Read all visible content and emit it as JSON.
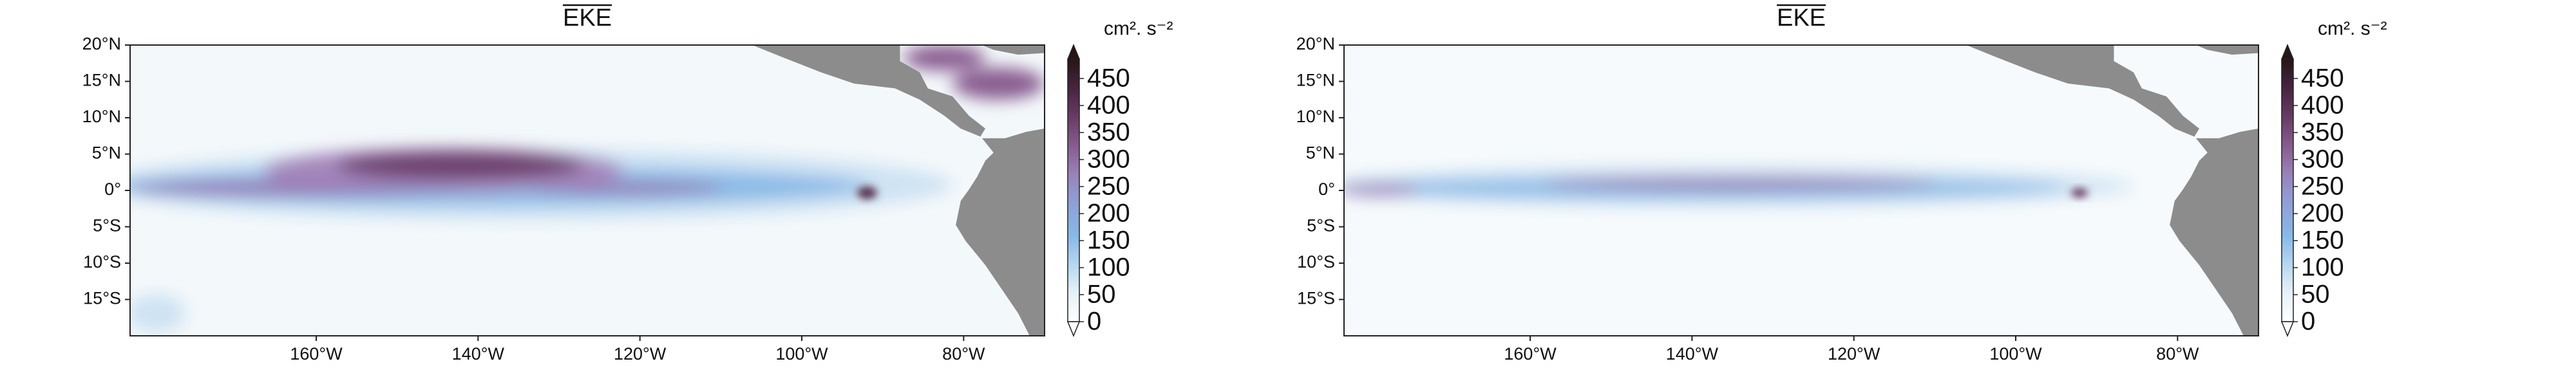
{
  "maps": [
    {
      "title": "EKE",
      "unit": "cm². s⁻²",
      "xlim": [
        -183,
        -70
      ],
      "ylim": [
        -20,
        20
      ],
      "lat_ticks": [
        {
          "value": 20,
          "label": "20°N"
        },
        {
          "value": 15,
          "label": "15°N"
        },
        {
          "value": 10,
          "label": "10°N"
        },
        {
          "value": 5,
          "label": "5°N"
        },
        {
          "value": 0,
          "label": "0°"
        },
        {
          "value": -5,
          "label": "5°S"
        },
        {
          "value": -10,
          "label": "10°S"
        },
        {
          "value": -15,
          "label": "15°S"
        }
      ],
      "lon_ticks": [
        {
          "value": -160,
          "label": "160°W"
        },
        {
          "value": -140,
          "label": "140°W"
        },
        {
          "value": -120,
          "label": "120°W"
        },
        {
          "value": -100,
          "label": "100°W"
        },
        {
          "value": -80,
          "label": "80°W"
        }
      ],
      "colorbar_ticks": [
        0,
        50,
        100,
        150,
        200,
        250,
        300,
        350,
        400,
        450
      ]
    },
    {
      "title": "EKE",
      "unit": "cm². s⁻²",
      "xlim": [
        -183,
        -70
      ],
      "ylim": [
        -20,
        20
      ],
      "lat_ticks": [
        {
          "value": 20,
          "label": "20°N"
        },
        {
          "value": 15,
          "label": "15°N"
        },
        {
          "value": 10,
          "label": "10°N"
        },
        {
          "value": 5,
          "label": "5°N"
        },
        {
          "value": 0,
          "label": "0°"
        },
        {
          "value": -5,
          "label": "5°S"
        },
        {
          "value": -10,
          "label": "10°S"
        },
        {
          "value": -15,
          "label": "15°S"
        }
      ],
      "lon_ticks": [
        {
          "value": -160,
          "label": "160°W"
        },
        {
          "value": -140,
          "label": "140°W"
        },
        {
          "value": -120,
          "label": "120°W"
        },
        {
          "value": -100,
          "label": "100°W"
        },
        {
          "value": -80,
          "label": "80°W"
        }
      ],
      "colorbar_ticks": [
        0,
        50,
        100,
        150,
        200,
        250,
        300,
        350,
        400,
        450
      ]
    }
  ]
}
